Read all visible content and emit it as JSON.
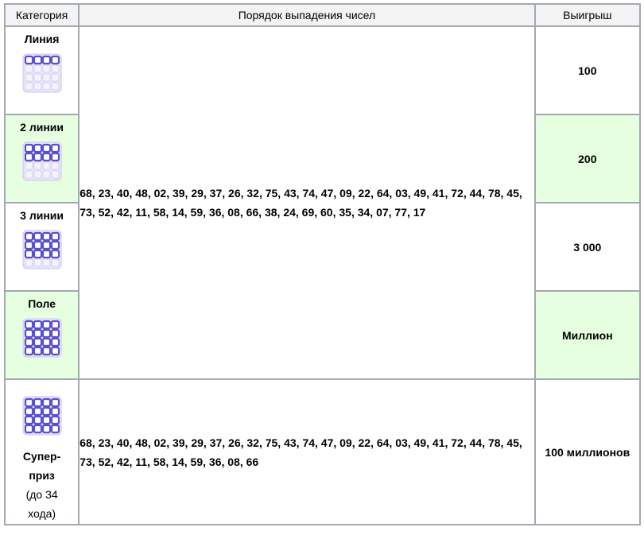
{
  "headers": {
    "category": "Категория",
    "sequence": "Порядок выпадения чисел",
    "prize": "Выигрыш"
  },
  "rows": [
    {
      "category": "Линия",
      "prize": "100",
      "filled_rows": 1
    },
    {
      "category": "2 линии",
      "prize": "200",
      "filled_rows": 2
    },
    {
      "category": "3 линии",
      "prize": "3 000",
      "filled_rows": 3
    },
    {
      "category": "Поле",
      "prize": "Миллион",
      "filled_rows": 4
    }
  ],
  "sequence_main": "68, 23, 40, 48, 02, 39, 29, 37, 26, 32, 75, 43, 74, 47, 09, 22, 64, 03, 49, 41, 72, 44, 78, 45, 73, 52, 42, 11, 58, 14, 59, 36, 08, 66, 38, 24, 69, 60, 35, 34, 07, 77, 17",
  "super": {
    "category_line1": "Супер-",
    "category_line2": "приз",
    "note_line1": "(до 34",
    "note_line2": "хода)",
    "prize": "100 миллионов",
    "sequence": "68, 23, 40, 48, 02, 39, 29, 37, 26, 32, 75, 43, 74, 47, 09, 22, 64, 03, 49, 41, 72, 44, 78, 45, 73, 52, 42, 11, 58, 14, 59, 36, 08, 66",
    "filled_rows": 4
  },
  "colors": {
    "highlight": "#e6ffe0",
    "ticket_cell": "#5a4fcf",
    "ticket_bg": "#e8e6fb",
    "border": "#a2a9b1"
  },
  "icons": {
    "ticket": "lotto-ticket-icon"
  }
}
